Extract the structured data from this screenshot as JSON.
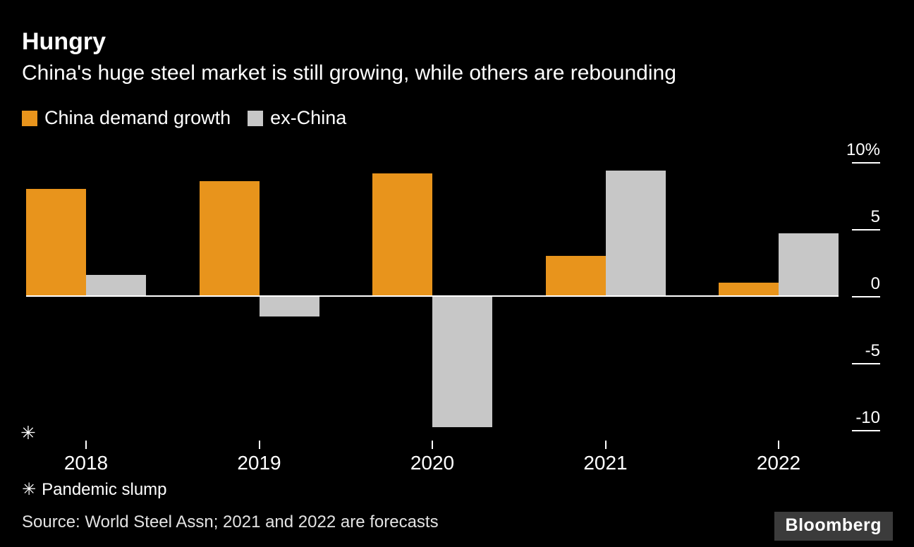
{
  "header": {
    "title": "Hungry",
    "subtitle": "China's huge steel market is still growing, while others are rebounding"
  },
  "legend": [
    {
      "label": "China demand growth",
      "color": "#E8941C"
    },
    {
      "label": "ex-China",
      "color": "#C7C7C7"
    }
  ],
  "chart_data": {
    "type": "bar",
    "title": "Hungry",
    "subtitle": "China's huge steel market is still growing, while others are rebounding",
    "categories": [
      "2018",
      "2019",
      "2020",
      "2021",
      "2022"
    ],
    "series": [
      {
        "name": "China demand growth",
        "color": "#E8941C",
        "values": [
          8.0,
          8.6,
          9.2,
          3.0,
          1.0
        ]
      },
      {
        "name": "ex-China",
        "color": "#C7C7C7",
        "values": [
          1.6,
          -1.5,
          -9.8,
          9.4,
          4.7
        ]
      }
    ],
    "xlabel": "",
    "ylabel": "",
    "ylim": [
      -10.8,
      11.6
    ],
    "yticks": [
      {
        "value": 10,
        "label": "10%"
      },
      {
        "value": 5,
        "label": "5"
      },
      {
        "value": 0,
        "label": "0"
      },
      {
        "value": -5,
        "label": "-5"
      },
      {
        "value": -10,
        "label": "-10"
      }
    ],
    "grid": false,
    "legend_position": "top-left",
    "y_axis_side": "right",
    "annotation_marker": "✳"
  },
  "footnote": {
    "marker": "✳",
    "text": "Pandemic slump"
  },
  "source": "Source: World Steel Assn; 2021 and 2022 are forecasts",
  "logo": "Bloomberg"
}
